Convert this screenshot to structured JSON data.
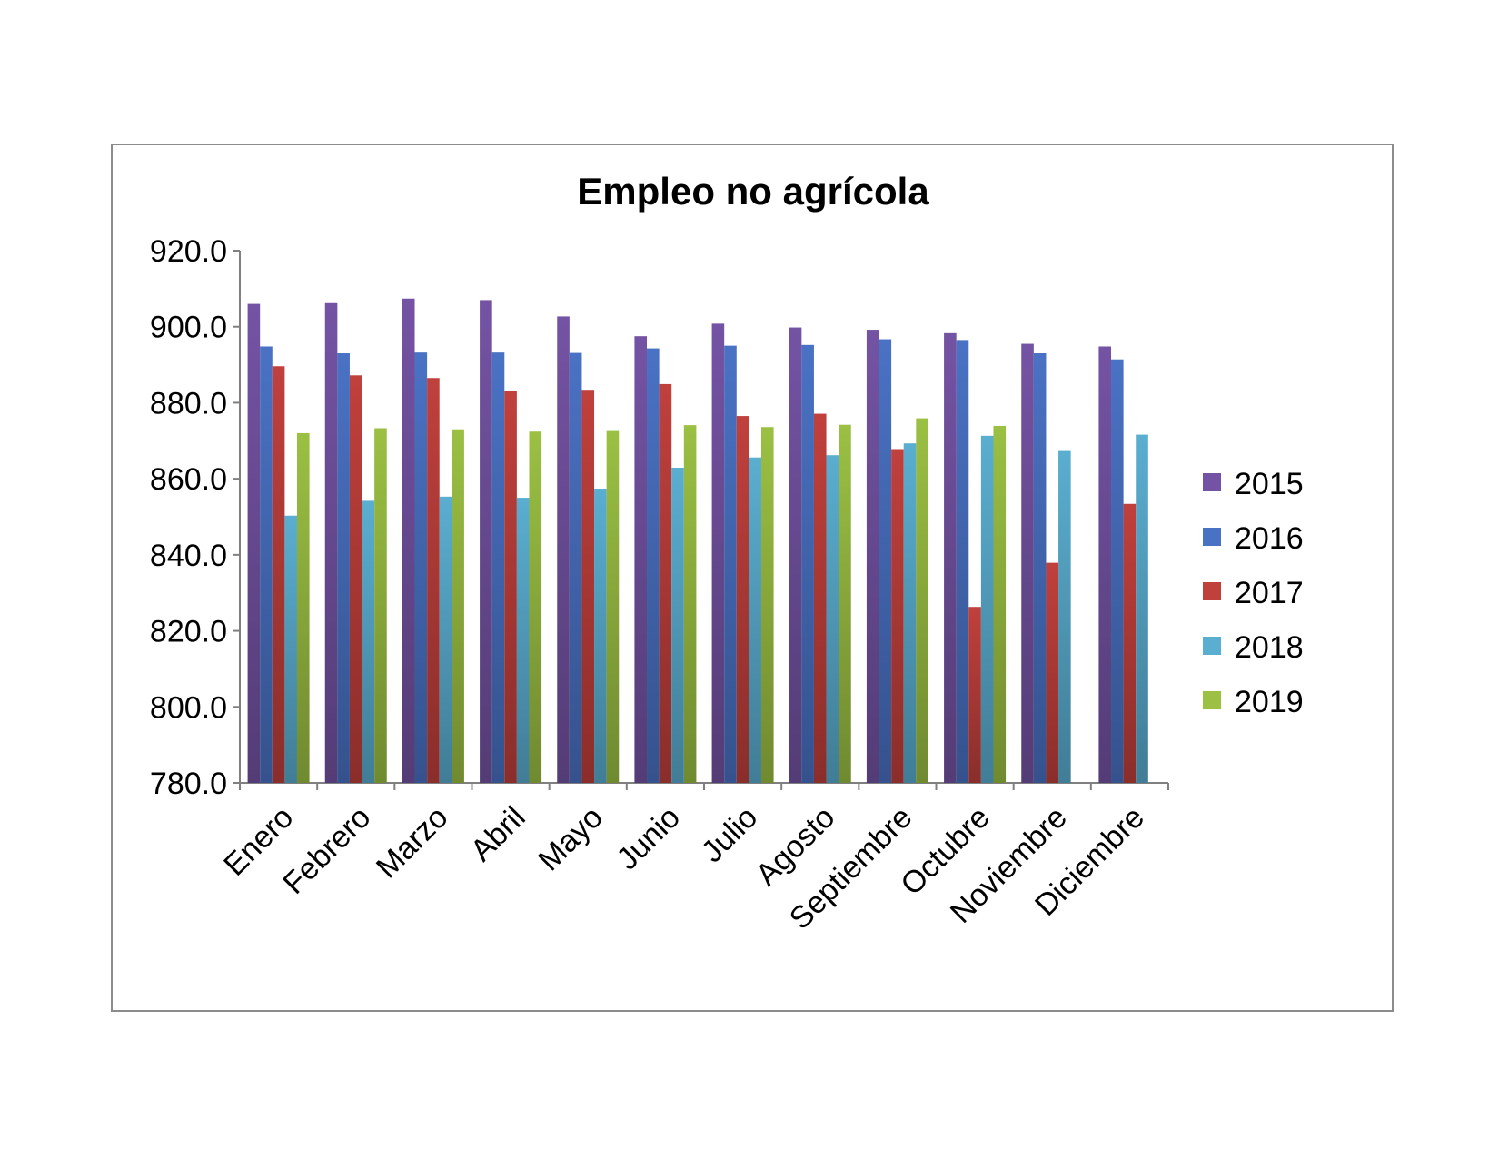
{
  "chart_data": {
    "type": "bar",
    "title": "Empleo no agrícola",
    "xlabel": "",
    "ylabel": "",
    "ylim": [
      780,
      920
    ],
    "yticks": [
      "920.0",
      "900.0",
      "880.0",
      "860.0",
      "840.0",
      "820.0",
      "800.0",
      "780.0"
    ],
    "ytick_values": [
      920,
      900,
      880,
      860,
      840,
      820,
      800,
      780
    ],
    "grid": false,
    "legend_position": "right",
    "categories": [
      "Enero",
      "Febrero",
      "Marzo",
      "Abril",
      "Mayo",
      "Junio",
      "Julio",
      "Agosto",
      "Septiembre",
      "Octubre",
      "Noviembre",
      "Diciembre"
    ],
    "series": [
      {
        "name": "2015",
        "color": "#7453a4",
        "values": [
          906.0,
          906.2,
          907.4,
          907.0,
          902.7,
          897.5,
          900.8,
          899.8,
          899.2,
          898.3,
          895.5,
          894.8
        ]
      },
      {
        "name": "2016",
        "color": "#4a72c4",
        "values": [
          894.8,
          893.0,
          893.2,
          893.2,
          893.1,
          894.3,
          895.0,
          895.2,
          896.7,
          896.5,
          893.0,
          891.4
        ]
      },
      {
        "name": "2017",
        "color": "#c0403c",
        "values": [
          889.6,
          887.2,
          886.5,
          883.0,
          883.4,
          884.9,
          876.5,
          877.1,
          867.8,
          826.3,
          837.9,
          853.4
        ]
      },
      {
        "name": "2018",
        "color": "#5aaed0",
        "values": [
          850.3,
          854.2,
          855.3,
          855.0,
          857.4,
          862.9,
          865.6,
          866.2,
          869.3,
          871.3,
          867.3,
          871.6
        ]
      },
      {
        "name": "2019",
        "color": "#9bc043",
        "values": [
          872.0,
          873.3,
          873.0,
          872.4,
          872.8,
          874.1,
          873.6,
          874.2,
          875.9,
          873.9,
          null,
          null
        ]
      }
    ]
  }
}
